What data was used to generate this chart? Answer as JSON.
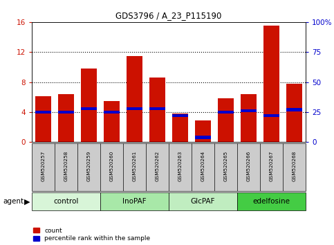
{
  "title": "GDS3796 / A_23_P115190",
  "samples": [
    "GSM520257",
    "GSM520258",
    "GSM520259",
    "GSM520260",
    "GSM520261",
    "GSM520262",
    "GSM520263",
    "GSM520264",
    "GSM520265",
    "GSM520266",
    "GSM520267",
    "GSM520268"
  ],
  "count_values": [
    6.1,
    6.4,
    9.8,
    5.5,
    11.5,
    8.6,
    3.8,
    2.9,
    5.8,
    6.4,
    15.5,
    7.8
  ],
  "percentile_values": [
    25,
    25,
    28,
    25,
    28,
    28,
    22,
    4,
    25,
    26,
    22,
    27
  ],
  "groups": [
    {
      "label": "control",
      "start": 0,
      "end": 3,
      "color": "#d8f5d8"
    },
    {
      "label": "InoPAF",
      "start": 3,
      "end": 6,
      "color": "#a8e8a8"
    },
    {
      "label": "GlcPAF",
      "start": 6,
      "end": 9,
      "color": "#c0edc0"
    },
    {
      "label": "edelfosine",
      "start": 9,
      "end": 12,
      "color": "#44cc44"
    }
  ],
  "ylim_left": [
    0,
    16
  ],
  "ylim_right": [
    0,
    100
  ],
  "yticks_left": [
    0,
    4,
    8,
    12,
    16
  ],
  "yticks_right": [
    0,
    25,
    50,
    75,
    100
  ],
  "ytick_labels_right": [
    "0",
    "25",
    "50",
    "75",
    "100%"
  ],
  "bar_color": "#cc1100",
  "percentile_color": "#0000cc",
  "bar_width": 0.7,
  "bg_color": "#ffffff",
  "plot_bg_color": "#ffffff",
  "tick_bg_color": "#cccccc",
  "left_axis_color": "#cc1100",
  "right_axis_color": "#0000cc",
  "agent_label": "agent",
  "legend_count": "count",
  "legend_percentile": "percentile rank within the sample"
}
